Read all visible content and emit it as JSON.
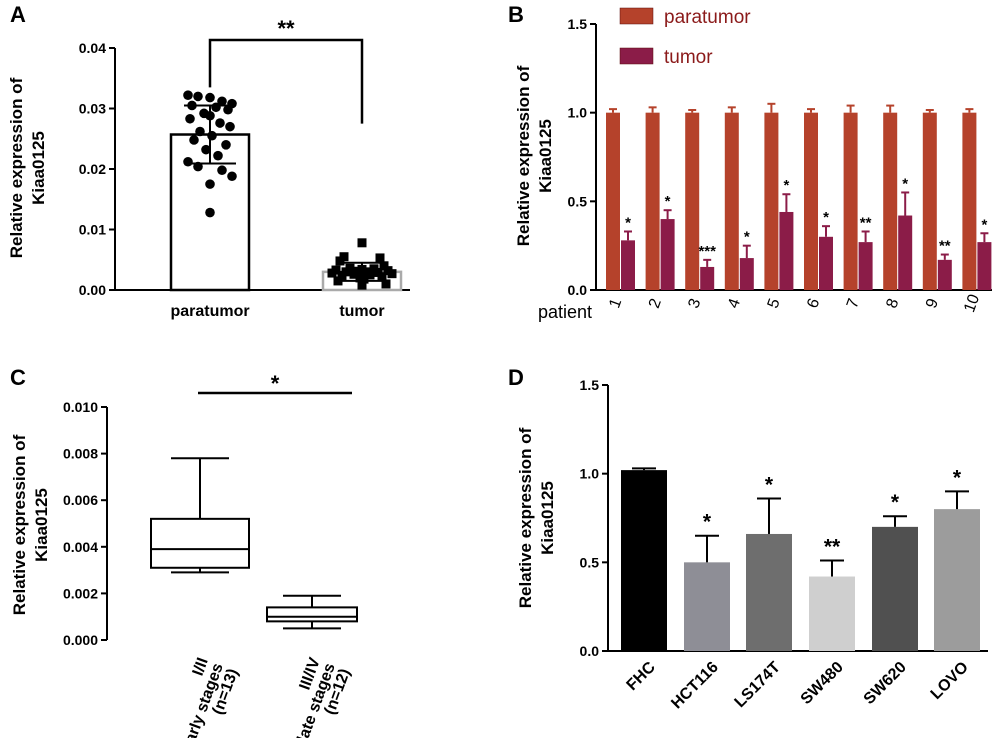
{
  "chart_data": [
    {
      "panel": "A",
      "type": "bar",
      "ylabel": [
        "Relative expression of",
        "Kiaa0125"
      ],
      "ylim": [
        0,
        0.04
      ],
      "yticks": [
        "0.00",
        "0.01",
        "0.02",
        "0.03",
        "0.04"
      ],
      "categories": [
        "paratumor",
        "tumor"
      ],
      "values": [
        0.0257,
        0.003
      ],
      "errors": [
        0.0048,
        0.0015
      ],
      "significance": "**",
      "points": {
        "paratumor": [
          0.0322,
          0.032,
          0.0318,
          0.0312,
          0.0308,
          0.0305,
          0.0302,
          0.0298,
          0.0292,
          0.0288,
          0.0283,
          0.0276,
          0.027,
          0.0262,
          0.0255,
          0.0248,
          0.024,
          0.0232,
          0.0222,
          0.0212,
          0.0204,
          0.0198,
          0.0188,
          0.0175,
          0.0128
        ],
        "tumor": [
          0.0078,
          0.0055,
          0.0053,
          0.0048,
          0.004,
          0.0036,
          0.0035,
          0.0034,
          0.0033,
          0.0032,
          0.0031,
          0.003,
          0.003,
          0.0029,
          0.0028,
          0.0027,
          0.0026,
          0.0025,
          0.0024,
          0.0022,
          0.002,
          0.0018,
          0.0015,
          0.001,
          0.0008
        ]
      }
    },
    {
      "panel": "B",
      "type": "bar",
      "ylabel": [
        "Relative expression of",
        "Kiaa0125"
      ],
      "ylim": [
        0,
        1.5
      ],
      "yticks": [
        "0.0",
        "0.5",
        "1.0",
        "1.5"
      ],
      "xprefix": "patient",
      "categories": [
        "1",
        "2",
        "3",
        "4",
        "5",
        "6",
        "7",
        "8",
        "9",
        "10"
      ],
      "series": [
        {
          "name": "paratumor",
          "color": "#b5422b",
          "values": [
            1.0,
            1.0,
            1.0,
            1.0,
            1.0,
            1.0,
            1.0,
            1.0,
            1.0,
            1.0
          ],
          "errors": [
            0.02,
            0.03,
            0.015,
            0.03,
            0.05,
            0.02,
            0.04,
            0.04,
            0.015,
            0.02
          ]
        },
        {
          "name": "tumor",
          "color": "#8b1c48",
          "values": [
            0.28,
            0.4,
            0.13,
            0.18,
            0.44,
            0.3,
            0.27,
            0.42,
            0.17,
            0.27
          ],
          "errors": [
            0.05,
            0.05,
            0.04,
            0.07,
            0.1,
            0.06,
            0.06,
            0.13,
            0.03,
            0.05
          ],
          "significance": [
            "*",
            "*",
            "***",
            "*",
            "*",
            "*",
            "**",
            "*",
            "**",
            "*"
          ]
        }
      ],
      "legend_position": "top-left"
    },
    {
      "panel": "C",
      "type": "box",
      "ylabel": [
        "Relative expression of",
        "Kiaa0125"
      ],
      "ylim": [
        0,
        0.01
      ],
      "yticks": [
        "0.000",
        "0.002",
        "0.004",
        "0.006",
        "0.008",
        "0.010"
      ],
      "categories": [
        [
          "I/II",
          "early stages",
          "(n=13)"
        ],
        [
          "III/IV",
          "late stages",
          "(n=12)"
        ]
      ],
      "boxes": [
        {
          "min": 0.0029,
          "q1": 0.0031,
          "median": 0.0039,
          "q3": 0.0052,
          "max": 0.0078
        },
        {
          "min": 0.0005,
          "q1": 0.0008,
          "median": 0.001,
          "q3": 0.0014,
          "max": 0.0019
        }
      ],
      "significance": "*"
    },
    {
      "panel": "D",
      "type": "bar",
      "ylabel": [
        "Relative expression of",
        "Kiaa0125"
      ],
      "ylim": [
        0,
        1.5
      ],
      "yticks": [
        "0.0",
        "0.5",
        "1.0",
        "1.5"
      ],
      "categories": [
        "FHC",
        "HCT116",
        "LS174T",
        "SW480",
        "SW620",
        "LOVO"
      ],
      "values": [
        1.02,
        0.5,
        0.66,
        0.42,
        0.7,
        0.8
      ],
      "errors": [
        0.01,
        0.15,
        0.2,
        0.09,
        0.06,
        0.1
      ],
      "colors": [
        "#000000",
        "#8e8e96",
        "#6e6e6e",
        "#cfcfcf",
        "#505050",
        "#9c9c9c"
      ],
      "significance": [
        "",
        "*",
        "*",
        "**",
        "*",
        "*"
      ]
    }
  ]
}
